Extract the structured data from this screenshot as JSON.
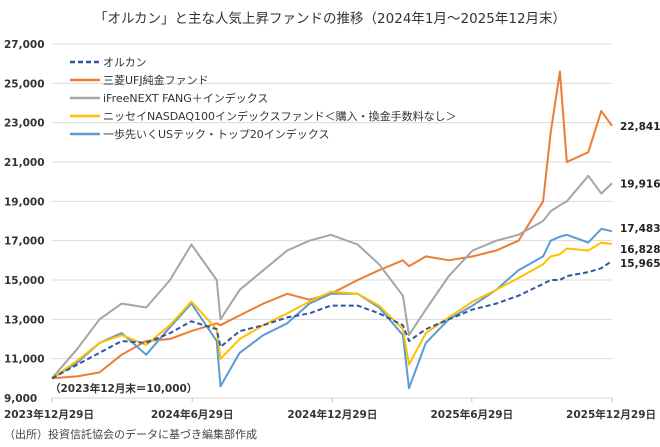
{
  "chart_data": {
    "type": "line",
    "title": "「オルカン」と主な人気上昇ファンドの推移（2024年1月～2025年12月末）",
    "note": "（2023年12月末＝10,000）",
    "source": "（出所）投資信託協会のデータに基づき編集部作成",
    "ylim": [
      9000,
      27000
    ],
    "y_ticks": [
      "27,000",
      "25,000",
      "23,000",
      "21,000",
      "19,000",
      "17,000",
      "15,000",
      "13,000",
      "11,000",
      "9,000"
    ],
    "y_tick_values": [
      27000,
      25000,
      23000,
      21000,
      19000,
      17000,
      15000,
      13000,
      11000,
      9000
    ],
    "x_ticks": [
      "2023年12月29日",
      "2024年6月29日",
      "2024年12月29日",
      "2025年6月29日",
      "2025年12月29日"
    ],
    "x_tick_dates": [
      "2023-12-29",
      "2024-06-29",
      "2024-12-29",
      "2025-06-29",
      "2025-12-29"
    ],
    "grid": "horizontal",
    "legend": "top-left",
    "x": [
      "2023-12-29",
      "2024-01-31",
      "2024-02-29",
      "2024-03-29",
      "2024-04-30",
      "2024-05-31",
      "2024-06-28",
      "2024-07-31",
      "2024-08-05",
      "2024-08-30",
      "2024-09-30",
      "2024-10-31",
      "2024-11-29",
      "2024-12-27",
      "2025-01-31",
      "2025-02-28",
      "2025-03-31",
      "2025-04-08",
      "2025-04-30",
      "2025-05-30",
      "2025-06-30",
      "2025-07-31",
      "2025-08-29",
      "2025-09-30",
      "2025-10-10",
      "2025-10-22",
      "2025-10-31",
      "2025-11-28",
      "2025-12-15",
      "2025-12-29"
    ],
    "series": [
      {
        "name": "オルカン",
        "color": "#2f55a4",
        "dashed": true,
        "end_label": "15,965",
        "values": [
          10000,
          10700,
          11300,
          11900,
          11800,
          12300,
          12900,
          12500,
          11600,
          12400,
          12700,
          13100,
          13300,
          13700,
          13700,
          13300,
          12700,
          11900,
          12500,
          13000,
          13500,
          13800,
          14200,
          14800,
          15000,
          15000,
          15200,
          15400,
          15600,
          15965
        ]
      },
      {
        "name": "三菱UFJ純金ファンド",
        "color": "#ed7d31",
        "dashed": false,
        "end_label": "22,841",
        "values": [
          10000,
          10100,
          10300,
          11200,
          11900,
          12000,
          12400,
          12800,
          12700,
          13200,
          13800,
          14300,
          14000,
          14300,
          15000,
          15500,
          16000,
          15700,
          16200,
          16000,
          16200,
          16500,
          17000,
          19000,
          22500,
          25600,
          21000,
          21500,
          23600,
          22841
        ]
      },
      {
        "name": "iFreeNEXT FANG＋インデックス",
        "color": "#a5a5a5",
        "dashed": false,
        "end_label": "19,916",
        "values": [
          10000,
          11500,
          13000,
          13800,
          13600,
          15000,
          16800,
          15000,
          13000,
          14500,
          15500,
          16500,
          17000,
          17300,
          16800,
          15800,
          14200,
          12200,
          13500,
          15200,
          16500,
          17000,
          17300,
          18000,
          18500,
          18800,
          19000,
          20300,
          19400,
          19916
        ]
      },
      {
        "name": "ニッセイNASDAQ100インデックスファンド＜購入・換金手数料なし＞",
        "color": "#ffc000",
        "dashed": false,
        "end_label": "16,828",
        "values": [
          10000,
          10900,
          11800,
          12200,
          11700,
          12700,
          13900,
          12500,
          11000,
          12000,
          12700,
          13300,
          13900,
          14400,
          14300,
          13700,
          12500,
          10700,
          12300,
          13100,
          13900,
          14500,
          15100,
          15800,
          16200,
          16300,
          16600,
          16500,
          16900,
          16828
        ]
      },
      {
        "name": "一歩先いくUSテック・トップ20インデックス",
        "color": "#5b9bd5",
        "dashed": false,
        "end_label": "17,483",
        "values": [
          10000,
          10800,
          11800,
          12300,
          11200,
          12600,
          13800,
          11900,
          9600,
          11300,
          12200,
          12800,
          13800,
          14300,
          14300,
          13600,
          12200,
          9500,
          11800,
          13000,
          13700,
          14500,
          15500,
          16200,
          17000,
          17200,
          17300,
          16900,
          17600,
          17483
        ]
      }
    ]
  }
}
